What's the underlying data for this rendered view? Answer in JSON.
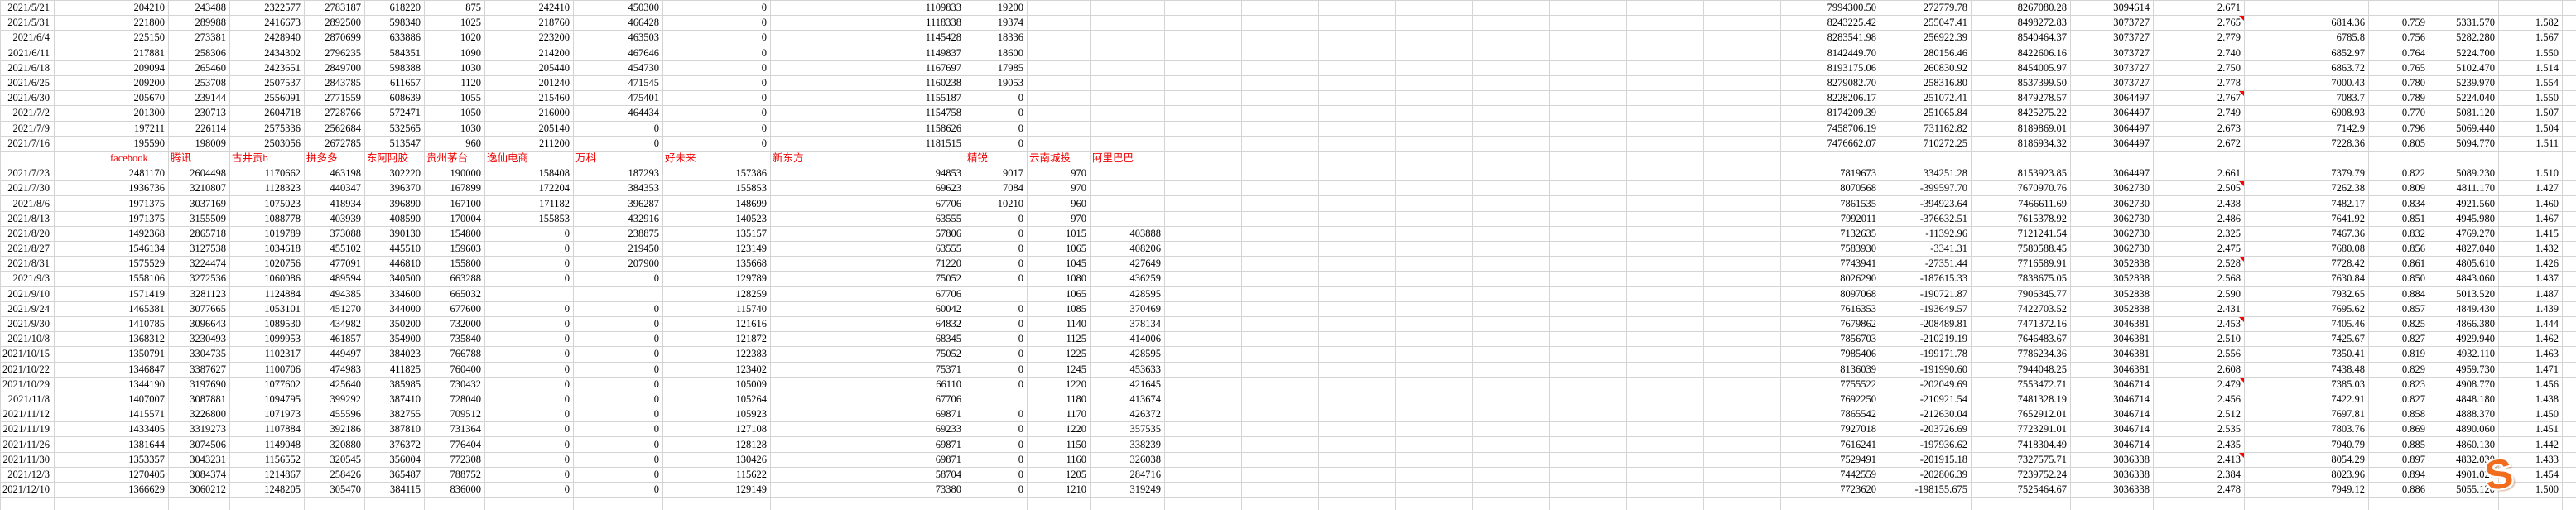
{
  "colors": {
    "header_text": "#f00000",
    "comment_marker": "#ff0000",
    "gridline": "#d4d4d4",
    "watermark_orange": "#f26c1e"
  },
  "watermark": {
    "letter": "S"
  },
  "sheet": {
    "company_headers": [
      "facebook",
      "腾讯",
      "古井贡b",
      "拼多多",
      "东阿阿胶",
      "贵州茅台",
      "逸仙电商",
      "万科",
      "好未来",
      "新东方",
      "精锐",
      "云南城投",
      "阿里巴巴"
    ],
    "top_rows": [
      {
        "date": "2021/5/21",
        "v": [
          "204210",
          "243488",
          "2322577",
          "2783187",
          "618220",
          "875",
          "242410",
          "450300",
          "0",
          "1109833",
          "19200",
          "",
          "",
          "7994300.50",
          "272779.78",
          "8267080.28",
          "3094614",
          "2.671",
          "",
          "",
          "",
          ""
        ]
      },
      {
        "date": "2021/5/31",
        "m": true,
        "v": [
          "221800",
          "289988",
          "2416673",
          "2892500",
          "598340",
          "1025",
          "218760",
          "466428",
          "0",
          "1118338",
          "19374",
          "",
          "",
          "8243225.42",
          "255047.41",
          "8498272.83",
          "3073727",
          "2.765",
          "6814.36",
          "0.759",
          "5331.570",
          "1.582"
        ]
      },
      {
        "date": "2021/6/4",
        "v": [
          "225150",
          "273381",
          "2428940",
          "2870699",
          "633886",
          "1020",
          "223200",
          "463503",
          "0",
          "1145428",
          "18336",
          "",
          "",
          "8283541.98",
          "256922.39",
          "8540464.37",
          "3073727",
          "2.779",
          "6785.8",
          "0.756",
          "5282.280",
          "1.567"
        ]
      },
      {
        "date": "2021/6/11",
        "v": [
          "217881",
          "258306",
          "2434302",
          "2796235",
          "584351",
          "1090",
          "214200",
          "467646",
          "0",
          "1149837",
          "18600",
          "",
          "",
          "8142449.70",
          "280156.46",
          "8422606.16",
          "3073727",
          "2.740",
          "6852.97",
          "0.764",
          "5224.700",
          "1.550"
        ]
      },
      {
        "date": "2021/6/18",
        "v": [
          "209094",
          "265460",
          "2423651",
          "2849700",
          "598388",
          "1030",
          "205440",
          "454730",
          "0",
          "1167697",
          "17985",
          "",
          "",
          "8193175.06",
          "260830.92",
          "8454005.97",
          "3073727",
          "2.750",
          "6863.72",
          "0.765",
          "5102.470",
          "1.514"
        ]
      },
      {
        "date": "2021/6/25",
        "v": [
          "209200",
          "253708",
          "2507537",
          "2843785",
          "611657",
          "1120",
          "201240",
          "471545",
          "0",
          "1160238",
          "19053",
          "",
          "",
          "8279082.70",
          "258316.80",
          "8537399.50",
          "3073727",
          "2.778",
          "7000.43",
          "0.780",
          "5239.970",
          "1.554"
        ]
      },
      {
        "date": "2021/6/30",
        "m": true,
        "v": [
          "205670",
          "239144",
          "2556091",
          "2771559",
          "608639",
          "1055",
          "215460",
          "475401",
          "0",
          "1155187",
          "0",
          "",
          "",
          "8228206.17",
          "251072.41",
          "8479278.57",
          "3064497",
          "2.767",
          "7083.7",
          "0.789",
          "5224.040",
          "1.550"
        ]
      },
      {
        "date": "2021/7/2",
        "v": [
          "201300",
          "230713",
          "2604718",
          "2728766",
          "572471",
          "1050",
          "216000",
          "464434",
          "0",
          "1154758",
          "0",
          "",
          "",
          "8174209.39",
          "251065.84",
          "8425275.22",
          "3064497",
          "2.749",
          "6908.93",
          "0.770",
          "5081.120",
          "1.507"
        ]
      },
      {
        "date": "2021/7/9",
        "v": [
          "197211",
          "226114",
          "2575336",
          "2562684",
          "532565",
          "1030",
          "205140",
          "0",
          "0",
          "1158626",
          "0",
          "",
          "",
          "7458706.19",
          "731162.82",
          "8189869.01",
          "3064497",
          "2.673",
          "7142.9",
          "0.796",
          "5069.440",
          "1.504"
        ]
      },
      {
        "date": "2021/7/16",
        "v": [
          "195590",
          "198009",
          "2503056",
          "2672785",
          "513547",
          "960",
          "211200",
          "0",
          "0",
          "1181515",
          "0",
          "",
          "",
          "7476662.07",
          "710272.25",
          "8186934.32",
          "3064497",
          "2.672",
          "7228.36",
          "0.805",
          "5094.770",
          "1.511"
        ]
      }
    ],
    "bottom_rows": [
      {
        "date": "2021/7/23",
        "v": [
          "2481170",
          "2604498",
          "1170662",
          "463198",
          "302220",
          "190000",
          "158408",
          "187293",
          "157386",
          "94853",
          "9017",
          "970",
          "",
          "7819673",
          "334251.28",
          "8153923.85",
          "3064497",
          "2.661",
          "7379.79",
          "0.822",
          "5089.230",
          "1.510"
        ]
      },
      {
        "date": "2021/7/30",
        "m": true,
        "v": [
          "1936736",
          "3210807",
          "1128323",
          "440347",
          "396370",
          "167899",
          "172204",
          "384353",
          "155853",
          "69623",
          "7084",
          "970",
          "",
          "8070568",
          "-399597.70",
          "7670970.76",
          "3062730",
          "2.505",
          "7262.38",
          "0.809",
          "4811.170",
          "1.427"
        ]
      },
      {
        "date": "2021/8/6",
        "v": [
          "1971375",
          "3037169",
          "1075023",
          "418934",
          "396890",
          "167100",
          "171182",
          "396287",
          "148699",
          "67706",
          "10210",
          "960",
          "",
          "7861535",
          "-394923.64",
          "7466611.69",
          "3062730",
          "2.438",
          "7482.17",
          "0.834",
          "4921.560",
          "1.460"
        ]
      },
      {
        "date": "2021/8/13",
        "v": [
          "1971375",
          "3155509",
          "1088778",
          "403939",
          "408590",
          "170004",
          "155853",
          "432916",
          "140523",
          "63555",
          "0",
          "970",
          "",
          "7992011",
          "-376632.51",
          "7615378.92",
          "3062730",
          "2.486",
          "7641.92",
          "0.851",
          "4945.980",
          "1.467"
        ]
      },
      {
        "date": "2021/8/20",
        "v": [
          "1492368",
          "2865718",
          "1019789",
          "373088",
          "390130",
          "154800",
          "0",
          "238875",
          "135157",
          "57806",
          "0",
          "1015",
          "403888",
          "7132635",
          "-11392.96",
          "7121241.54",
          "3062730",
          "2.325",
          "7467.36",
          "0.832",
          "4769.270",
          "1.415"
        ]
      },
      {
        "date": "2021/8/27",
        "v": [
          "1546134",
          "3127538",
          "1034618",
          "455102",
          "445510",
          "159603",
          "0",
          "219450",
          "123149",
          "63555",
          "0",
          "1065",
          "408206",
          "7583930",
          "-3341.31",
          "7580588.45",
          "3062730",
          "2.475",
          "7680.08",
          "0.856",
          "4827.040",
          "1.432"
        ]
      },
      {
        "date": "2021/8/31",
        "m": true,
        "v": [
          "1575529",
          "3224474",
          "1020756",
          "477091",
          "446810",
          "155800",
          "0",
          "207900",
          "135668",
          "71220",
          "0",
          "1045",
          "427649",
          "7743941",
          "-27351.44",
          "7716589.91",
          "3052838",
          "2.528",
          "7728.42",
          "0.861",
          "4805.610",
          "1.426"
        ]
      },
      {
        "date": "2021/9/3",
        "v": [
          "1558106",
          "3272536",
          "1060086",
          "489594",
          "340500",
          "663288",
          "0",
          "0",
          "129789",
          "75052",
          "0",
          "1080",
          "436259",
          "8026290",
          "-187615.33",
          "7838675.05",
          "3052838",
          "2.568",
          "7630.84",
          "0.850",
          "4843.060",
          "1.437"
        ]
      },
      {
        "date": "2021/9/10",
        "v": [
          "1571419",
          "3281123",
          "1124884",
          "494385",
          "334600",
          "665032",
          "",
          "",
          "128259",
          "67706",
          "",
          "1065",
          "428595",
          "8097068",
          "-190721.87",
          "7906345.77",
          "3052838",
          "2.590",
          "7932.65",
          "0.884",
          "5013.520",
          "1.487"
        ]
      },
      {
        "date": "2021/9/24",
        "v": [
          "1465381",
          "3077665",
          "1053101",
          "451270",
          "344000",
          "677600",
          "0",
          "0",
          "115740",
          "60042",
          "0",
          "1085",
          "370469",
          "7616353",
          "-193649.57",
          "7422703.52",
          "3052838",
          "2.431",
          "7695.62",
          "0.857",
          "4849.430",
          "1.439"
        ]
      },
      {
        "date": "2021/9/30",
        "m": true,
        "v": [
          "1410785",
          "3096643",
          "1089530",
          "434982",
          "350200",
          "732000",
          "0",
          "0",
          "121616",
          "64832",
          "0",
          "1140",
          "378134",
          "7679862",
          "-208489.81",
          "7471372.16",
          "3046381",
          "2.453",
          "7405.46",
          "0.825",
          "4866.380",
          "1.444"
        ]
      },
      {
        "date": "2021/10/8",
        "v": [
          "1368312",
          "3230493",
          "1099953",
          "461857",
          "354900",
          "735840",
          "0",
          "0",
          "121872",
          "68345",
          "0",
          "1125",
          "414006",
          "7856703",
          "-210219.19",
          "7646483.67",
          "3046381",
          "2.510",
          "7425.67",
          "0.827",
          "4929.940",
          "1.462"
        ]
      },
      {
        "date": "2021/10/15",
        "v": [
          "1350791",
          "3304735",
          "1102317",
          "449497",
          "384023",
          "766788",
          "0",
          "0",
          "122383",
          "75052",
          "0",
          "1225",
          "428595",
          "7985406",
          "-199171.78",
          "7786234.36",
          "3046381",
          "2.556",
          "7350.41",
          "0.819",
          "4932.110",
          "1.463"
        ]
      },
      {
        "date": "2021/10/22",
        "v": [
          "1346847",
          "3387627",
          "1100706",
          "474983",
          "411825",
          "760400",
          "0",
          "0",
          "123402",
          "75371",
          "0",
          "1245",
          "453633",
          "8136039",
          "-191990.60",
          "7944048.25",
          "3046381",
          "2.608",
          "7438.48",
          "0.829",
          "4959.730",
          "1.471"
        ]
      },
      {
        "date": "2021/10/29",
        "m": true,
        "v": [
          "1344190",
          "3197690",
          "1077602",
          "425640",
          "385985",
          "730432",
          "0",
          "0",
          "105009",
          "66110",
          "0",
          "1220",
          "421645",
          "7755522",
          "-202049.69",
          "7553472.71",
          "3046714",
          "2.479",
          "7385.03",
          "0.823",
          "4908.770",
          "1.456"
        ]
      },
      {
        "date": "2021/11/8",
        "v": [
          "1407007",
          "3087881",
          "1094795",
          "399292",
          "387410",
          "728040",
          "0",
          "0",
          "105264",
          "67706",
          "",
          "1180",
          "413674",
          "7692250",
          "-210921.54",
          "7481328.19",
          "3046714",
          "2.456",
          "7422.91",
          "0.827",
          "4848.180",
          "1.438"
        ]
      },
      {
        "date": "2021/11/12",
        "v": [
          "1415571",
          "3226800",
          "1071973",
          "455596",
          "382755",
          "709512",
          "0",
          "0",
          "105923",
          "69871",
          "0",
          "1170",
          "426372",
          "7865542",
          "-212630.04",
          "7652912.01",
          "3046714",
          "2.512",
          "7697.81",
          "0.858",
          "4888.370",
          "1.450"
        ]
      },
      {
        "date": "2021/11/19",
        "v": [
          "1433405",
          "3319273",
          "1107884",
          "392186",
          "387810",
          "731364",
          "0",
          "0",
          "127108",
          "69233",
          "0",
          "1220",
          "357535",
          "7927018",
          "-203726.69",
          "7723291.01",
          "3046714",
          "2.535",
          "7803.76",
          "0.869",
          "4890.060",
          "1.451"
        ]
      },
      {
        "date": "2021/11/26",
        "v": [
          "1381644",
          "3074506",
          "1149048",
          "320880",
          "376372",
          "776404",
          "0",
          "0",
          "128128",
          "69871",
          "0",
          "1150",
          "338239",
          "7616241",
          "-197936.62",
          "7418304.49",
          "3046714",
          "2.435",
          "7940.79",
          "0.885",
          "4860.130",
          "1.442"
        ]
      },
      {
        "date": "2021/11/30",
        "m": true,
        "v": [
          "1353357",
          "3043231",
          "1156552",
          "320545",
          "356004",
          "772308",
          "0",
          "0",
          "130426",
          "69871",
          "0",
          "1160",
          "326038",
          "7529491",
          "-201915.18",
          "7327575.71",
          "3036338",
          "2.413",
          "8054.29",
          "0.897",
          "4832.030",
          "1.433"
        ]
      },
      {
        "date": "2021/12/3",
        "v": [
          "1270405",
          "3084374",
          "1214867",
          "258426",
          "365487",
          "788752",
          "0",
          "0",
          "115622",
          "58704",
          "0",
          "1205",
          "284716",
          "7442559",
          "-202806.39",
          "7239752.24",
          "3036338",
          "2.384",
          "8023.96",
          "0.894",
          "4901.020",
          "1.454"
        ]
      },
      {
        "date": "2021/12/10",
        "v": [
          "1366629",
          "3060212",
          "1248205",
          "305470",
          "384115",
          "836000",
          "0",
          "0",
          "129149",
          "73380",
          "0",
          "1210",
          "319249",
          "7723620",
          "-198155.675",
          "7525464.67",
          "3036338",
          "2.478",
          "7949.12",
          "0.886",
          "5055.120",
          "1.500"
        ]
      }
    ]
  }
}
